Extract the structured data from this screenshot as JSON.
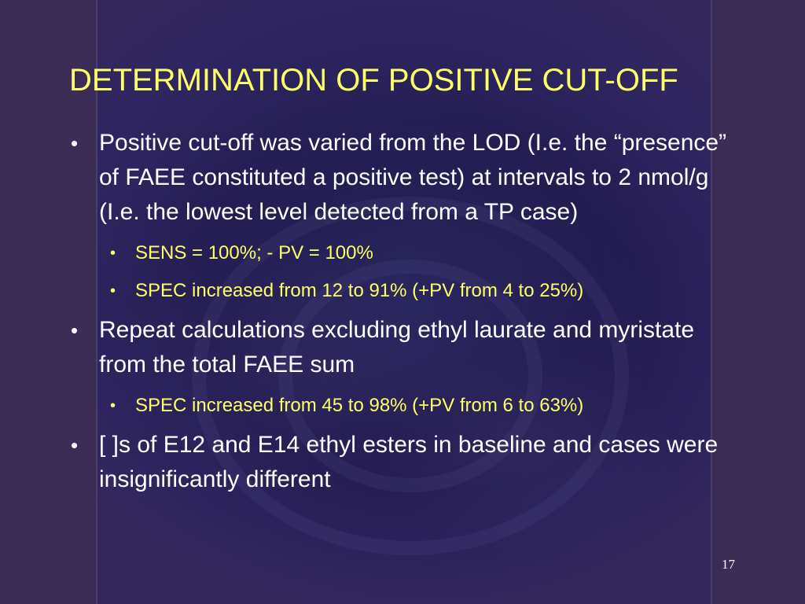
{
  "slide": {
    "title": "DETERMINATION OF POSITIVE CUT-OFF",
    "page_number": "17",
    "bullet_char": "•",
    "items": [
      {
        "text": "Positive cut-off was varied from the LOD (I.e. the “presence” of FAEE constituted a positive test) at intervals to 2 nmol/g (I.e. the lowest level detected from a TP case)",
        "subitems": [
          "SENS = 100%; - PV = 100%",
          "SPEC increased from 12 to 91% (+PV from 4 to 25%)"
        ]
      },
      {
        "text": "Repeat calculations excluding ethyl laurate and myristate from the total FAEE sum",
        "subitems": [
          "SPEC increased from 45 to 98% (+PV from 6 to 63%)"
        ]
      },
      {
        "text": "[ ]s of E12 and E14 ethyl esters in baseline and cases were insignificantly different",
        "subitems": []
      }
    ]
  },
  "colors": {
    "title": "#ffff66",
    "subitem_text": "#ffff66",
    "body_text": "#ffffff",
    "background": "#3b2c56"
  }
}
